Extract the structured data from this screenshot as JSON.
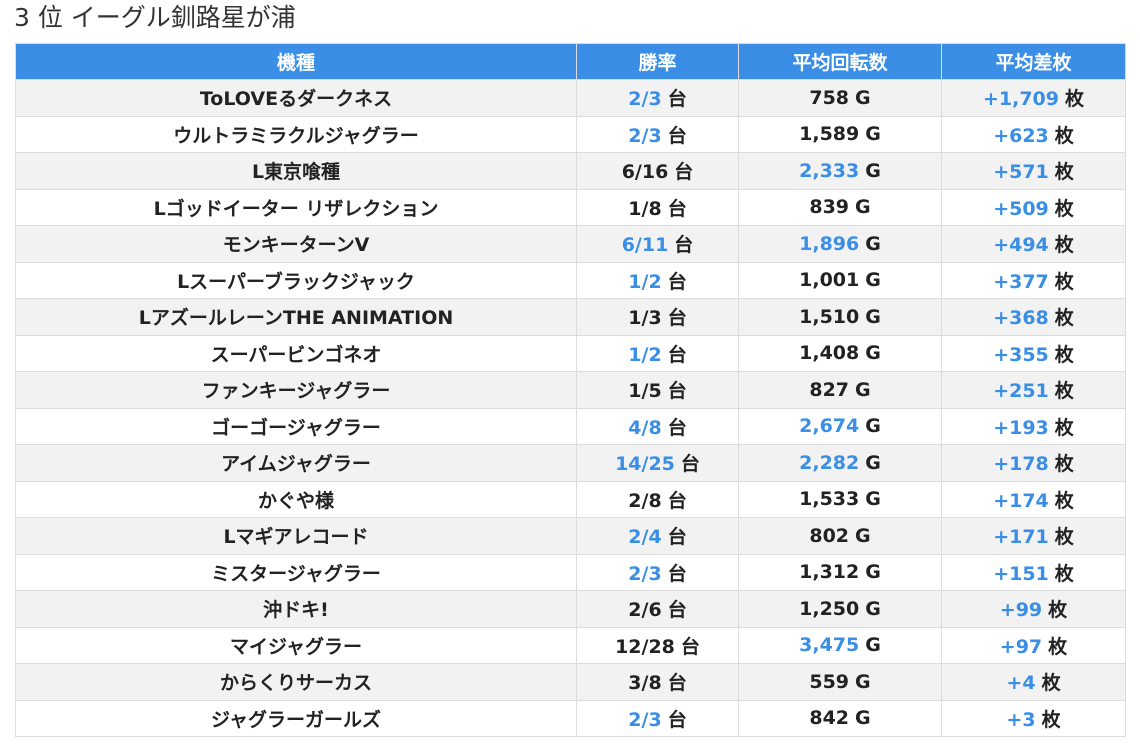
{
  "page": {
    "title": "3 位 イーグル釧路星が浦"
  },
  "colors": {
    "header_bg": "#3a8ee6",
    "highlight_text": "#3a8ee6",
    "stripe_row": "#f2f2f2"
  },
  "table": {
    "headers": [
      "機種",
      "勝率",
      "平均回転数",
      "平均差枚"
    ],
    "win_unit": "台",
    "spin_unit": "G",
    "diff_unit": "枚",
    "rows": [
      {
        "name": "ToLOVEるダークネス",
        "win": "2/3",
        "win_hl": true,
        "spins": "758",
        "spins_hl": false,
        "diff": "+1,709",
        "diff_hl": true
      },
      {
        "name": "ウルトラミラクルジャグラー",
        "win": "2/3",
        "win_hl": true,
        "spins": "1,589",
        "spins_hl": false,
        "diff": "+623",
        "diff_hl": true
      },
      {
        "name": "L東京喰種",
        "win": "6/16",
        "win_hl": false,
        "spins": "2,333",
        "spins_hl": true,
        "diff": "+571",
        "diff_hl": true
      },
      {
        "name": "Lゴッドイーター リザレクション",
        "win": "1/8",
        "win_hl": false,
        "spins": "839",
        "spins_hl": false,
        "diff": "+509",
        "diff_hl": true
      },
      {
        "name": "モンキーターンV",
        "win": "6/11",
        "win_hl": true,
        "spins": "1,896",
        "spins_hl": true,
        "diff": "+494",
        "diff_hl": true
      },
      {
        "name": "Lスーパーブラックジャック",
        "win": "1/2",
        "win_hl": true,
        "spins": "1,001",
        "spins_hl": false,
        "diff": "+377",
        "diff_hl": true
      },
      {
        "name": "LアズールレーンTHE ANIMATION",
        "win": "1/3",
        "win_hl": false,
        "spins": "1,510",
        "spins_hl": false,
        "diff": "+368",
        "diff_hl": true
      },
      {
        "name": "スーパービンゴネオ",
        "win": "1/2",
        "win_hl": true,
        "spins": "1,408",
        "spins_hl": false,
        "diff": "+355",
        "diff_hl": true
      },
      {
        "name": "ファンキージャグラー",
        "win": "1/5",
        "win_hl": false,
        "spins": "827",
        "spins_hl": false,
        "diff": "+251",
        "diff_hl": true
      },
      {
        "name": "ゴーゴージャグラー",
        "win": "4/8",
        "win_hl": true,
        "spins": "2,674",
        "spins_hl": true,
        "diff": "+193",
        "diff_hl": true
      },
      {
        "name": "アイムジャグラー",
        "win": "14/25",
        "win_hl": true,
        "spins": "2,282",
        "spins_hl": true,
        "diff": "+178",
        "diff_hl": true
      },
      {
        "name": "かぐや様",
        "win": "2/8",
        "win_hl": false,
        "spins": "1,533",
        "spins_hl": false,
        "diff": "+174",
        "diff_hl": true
      },
      {
        "name": "Lマギアレコード",
        "win": "2/4",
        "win_hl": true,
        "spins": "802",
        "spins_hl": false,
        "diff": "+171",
        "diff_hl": true
      },
      {
        "name": "ミスタージャグラー",
        "win": "2/3",
        "win_hl": true,
        "spins": "1,312",
        "spins_hl": false,
        "diff": "+151",
        "diff_hl": true
      },
      {
        "name": "沖ドキ!",
        "win": "2/6",
        "win_hl": false,
        "spins": "1,250",
        "spins_hl": false,
        "diff": "+99",
        "diff_hl": true
      },
      {
        "name": "マイジャグラー",
        "win": "12/28",
        "win_hl": false,
        "spins": "3,475",
        "spins_hl": true,
        "diff": "+97",
        "diff_hl": true
      },
      {
        "name": "からくりサーカス",
        "win": "3/8",
        "win_hl": false,
        "spins": "559",
        "spins_hl": false,
        "diff": "+4",
        "diff_hl": true
      },
      {
        "name": "ジャグラーガールズ",
        "win": "2/3",
        "win_hl": true,
        "spins": "842",
        "spins_hl": false,
        "diff": "+3",
        "diff_hl": true
      }
    ]
  }
}
